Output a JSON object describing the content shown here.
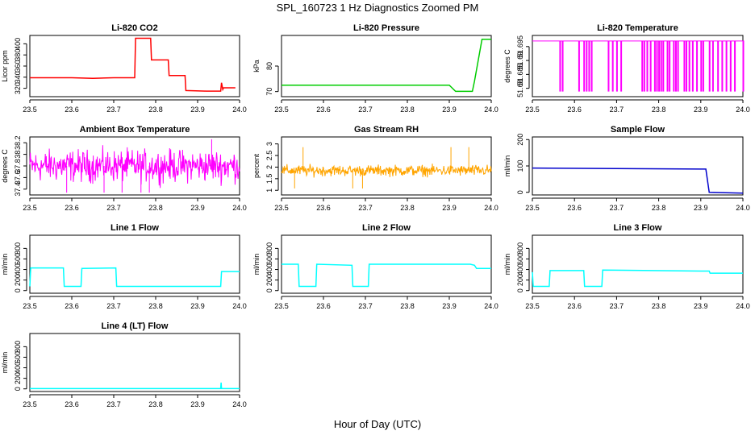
{
  "figure": {
    "title": "SPL_160723  1 Hz Diagnostics Zoomed PM",
    "xlabel": "Hour of Day (UTC)"
  },
  "chart_data": [
    {
      "type": "line",
      "title": "Li-820 CO2",
      "xlabel": "",
      "ylabel": "Licor ppm",
      "color": "#ff0000",
      "xlim": [
        23.5,
        24.0
      ],
      "ylim": [
        305,
        415
      ],
      "xticks": [
        "23.5",
        "23.6",
        "23.7",
        "23.8",
        "23.9",
        "24.0"
      ],
      "yticks": [
        320,
        340,
        360,
        380,
        400
      ],
      "x": [
        23.5,
        23.6,
        23.65,
        23.7,
        23.75,
        23.752,
        23.788,
        23.79,
        23.83,
        23.832,
        23.87,
        23.872,
        23.92,
        23.94,
        23.955,
        23.957,
        23.96,
        23.962,
        23.99
      ],
      "y": [
        339,
        339,
        338,
        339,
        339,
        410,
        410,
        371,
        371,
        343,
        343,
        316,
        315,
        315,
        315,
        330,
        318,
        321,
        321
      ]
    },
    {
      "type": "line",
      "title": "Li-820 Pressure",
      "xlabel": "",
      "ylabel": "kPa",
      "color": "#00cc00",
      "xlim": [
        23.5,
        24.0
      ],
      "ylim": [
        68,
        92
      ],
      "xticks": [
        "23.5",
        "23.6",
        "23.7",
        "23.8",
        "23.9",
        "24.0"
      ],
      "yticks": [
        70,
        80
      ],
      "x": [
        23.5,
        23.9,
        23.915,
        23.955,
        23.96,
        23.972,
        23.978,
        24.0
      ],
      "y": [
        72.5,
        72.5,
        70.1,
        70.1,
        74,
        85,
        90.5,
        90.5
      ]
    },
    {
      "type": "line",
      "title": "Li-820 Temperature",
      "xlabel": "",
      "ylabel": "degrees C",
      "color": "#ff00ff",
      "xlim": [
        23.5,
        24.0
      ],
      "ylim": [
        51.677,
        51.699
      ],
      "xticks": [
        "23.5",
        "23.6",
        "23.7",
        "23.8",
        "23.9",
        "24.0"
      ],
      "yticks": [
        51.68,
        51.685,
        51.69,
        51.695
      ],
      "high": 51.697,
      "low": 51.679,
      "drops_x": [
        23.565,
        23.571,
        23.61,
        23.622,
        23.628,
        23.634,
        23.64,
        23.68,
        23.69,
        23.7,
        23.71,
        23.76,
        23.765,
        23.772,
        23.78,
        23.79,
        23.795,
        23.8,
        23.805,
        23.81,
        23.82,
        23.825,
        23.835,
        23.84,
        23.845,
        23.86,
        23.865,
        23.872,
        23.88,
        23.89,
        23.9,
        23.905,
        23.92,
        23.928,
        23.94,
        23.95,
        23.96,
        23.97,
        23.98,
        24.0
      ]
    },
    {
      "type": "line",
      "title": "Ambient Box Temperature",
      "xlabel": "",
      "ylabel": "degrees C",
      "color": "#ff00ff",
      "xlim": [
        23.5,
        24.0
      ],
      "ylim": [
        37.3,
        38.3
      ],
      "xticks": [
        "23.5",
        "23.6",
        "23.7",
        "23.8",
        "23.9",
        "24.0"
      ],
      "yticks": [
        37.4,
        37.6,
        37.8,
        38.0,
        38.2
      ],
      "noise_mean": 37.8,
      "noise_range": [
        37.4,
        38.2
      ]
    },
    {
      "type": "line",
      "title": "Gas Stream RH",
      "xlabel": "",
      "ylabel": "percent",
      "color": "#ffa500",
      "xlim": [
        23.5,
        24.0
      ],
      "ylim": [
        0.8,
        3.3
      ],
      "xticks": [
        "23.5",
        "23.6",
        "23.7",
        "23.8",
        "23.9",
        "24.0"
      ],
      "yticks": [
        1.0,
        1.5,
        2.0,
        2.5,
        3.0
      ],
      "noise_mean": 1.85,
      "noise_range": [
        1.5,
        2.2
      ]
    },
    {
      "type": "line",
      "title": "Sample Flow",
      "xlabel": "",
      "ylabel": "ml/min",
      "color": "#0000cc",
      "xlim": [
        23.5,
        24.0
      ],
      "ylim": [
        -10,
        210
      ],
      "xticks": [
        "23.5",
        "23.6",
        "23.7",
        "23.8",
        "23.9",
        "24.0"
      ],
      "yticks": [
        0,
        100,
        200
      ],
      "x": [
        23.5,
        23.7,
        23.9,
        23.912,
        23.92,
        24.0
      ],
      "y": [
        92,
        90,
        88,
        88,
        0,
        -3
      ]
    },
    {
      "type": "line",
      "title": "Line 1 Flow",
      "xlabel": "",
      "ylabel": "ml/min",
      "color": "#00ffff",
      "xlim": [
        23.5,
        24.0
      ],
      "ylim": [
        -50,
        1050
      ],
      "xticks": [
        "23.5",
        "23.6",
        "23.7",
        "23.8",
        "23.9",
        "24.0"
      ],
      "yticks": [
        0,
        200,
        400,
        600,
        800
      ],
      "x": [
        23.5,
        23.502,
        23.58,
        23.582,
        23.622,
        23.624,
        23.705,
        23.707,
        23.955,
        23.957,
        24.0
      ],
      "y": [
        80,
        430,
        430,
        80,
        80,
        420,
        430,
        80,
        80,
        360,
        360
      ]
    },
    {
      "type": "line",
      "title": "Line 2 Flow",
      "xlabel": "",
      "ylabel": "ml/min",
      "color": "#00ffff",
      "xlim": [
        23.5,
        24.0
      ],
      "ylim": [
        -50,
        1050
      ],
      "xticks": [
        "23.5",
        "23.6",
        "23.7",
        "23.8",
        "23.9",
        "24.0"
      ],
      "yticks": [
        0,
        200,
        400,
        600,
        800
      ],
      "x": [
        23.5,
        23.54,
        23.542,
        23.582,
        23.584,
        23.668,
        23.67,
        23.707,
        23.709,
        23.95,
        23.96,
        23.965,
        24.0
      ],
      "y": [
        500,
        500,
        80,
        80,
        500,
        480,
        80,
        80,
        500,
        500,
        480,
        420,
        420
      ]
    },
    {
      "type": "line",
      "title": "Line 3 Flow",
      "xlabel": "",
      "ylabel": "ml/min",
      "color": "#00ffff",
      "xlim": [
        23.5,
        24.0
      ],
      "ylim": [
        -50,
        1050
      ],
      "xticks": [
        "23.5",
        "23.6",
        "23.7",
        "23.8",
        "23.9",
        "24.0"
      ],
      "yticks": [
        0,
        200,
        400,
        600,
        800
      ],
      "x": [
        23.5,
        23.502,
        23.504,
        23.54,
        23.542,
        23.622,
        23.624,
        23.665,
        23.667,
        23.9,
        23.92,
        23.922,
        24.0
      ],
      "y": [
        350,
        80,
        80,
        80,
        380,
        380,
        80,
        80,
        390,
        370,
        370,
        330,
        330
      ]
    },
    {
      "type": "line",
      "title": "Line 4 (LT) Flow",
      "xlabel": "",
      "ylabel": "ml/min",
      "color": "#00ffff",
      "xlim": [
        23.5,
        24.0
      ],
      "ylim": [
        -50,
        1050
      ],
      "xticks": [
        "23.5",
        "23.6",
        "23.7",
        "23.8",
        "23.9",
        "24.0"
      ],
      "yticks": [
        0,
        200,
        400,
        600,
        800
      ],
      "x": [
        23.5,
        23.955,
        23.956,
        23.957,
        23.958,
        24.0
      ],
      "y": [
        5,
        5,
        120,
        5,
        5,
        5
      ]
    }
  ]
}
